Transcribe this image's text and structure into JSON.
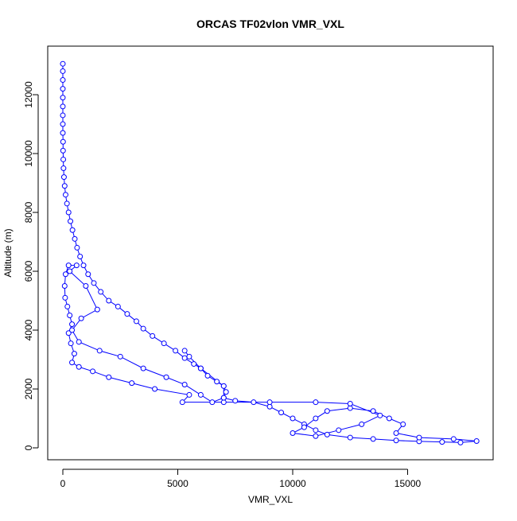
{
  "chart_data": {
    "type": "scatter",
    "title": "ORCAS TF02vlon VMR_VXL",
    "x_label": "VMR_VXL",
    "y_label": "Altitude (m)",
    "color": "#0000ff",
    "connect": true,
    "x": [
      0,
      0,
      0,
      0,
      0,
      0,
      0,
      0,
      0,
      10,
      10,
      20,
      30,
      50,
      80,
      120,
      180,
      250,
      330,
      420,
      520,
      620,
      750,
      900,
      1100,
      1350,
      1650,
      2000,
      2400,
      2800,
      3200,
      3500,
      3900,
      4400,
      4900,
      5300,
      5700,
      6000,
      6300,
      6700,
      7000,
      7100,
      7000,
      7500,
      8300,
      9000,
      9500,
      10000,
      10500,
      11000,
      11500,
      12500,
      13500,
      14500,
      15500,
      16500,
      17300,
      18000,
      17000,
      15500,
      14500,
      14800,
      14200,
      13500,
      12500,
      11500,
      11000,
      10500,
      10000,
      11000,
      12000,
      13000,
      13800,
      12500,
      11000,
      9000,
      7000,
      5200,
      5500,
      4000,
      3000,
      2000,
      1300,
      700,
      400,
      500,
      350,
      250,
      400,
      300,
      200,
      100,
      80,
      120,
      250,
      600,
      300,
      1000,
      1500,
      800,
      400,
      700,
      1600,
      2500,
      3500,
      4500,
      5300,
      6000,
      6500,
      7000,
      7000,
      6000,
      5500,
      5300
    ],
    "values": [
      13050,
      12800,
      12500,
      12200,
      11900,
      11600,
      11300,
      11000,
      10700,
      10400,
      10100,
      9800,
      9500,
      9200,
      8900,
      8600,
      8300,
      8000,
      7700,
      7400,
      7100,
      6800,
      6500,
      6200,
      5900,
      5600,
      5300,
      5000,
      4800,
      4550,
      4300,
      4050,
      3800,
      3550,
      3300,
      3050,
      2850,
      2700,
      2450,
      2250,
      2100,
      1900,
      1700,
      1600,
      1550,
      1400,
      1200,
      1000,
      800,
      600,
      450,
      350,
      300,
      250,
      220,
      200,
      180,
      230,
      300,
      350,
      500,
      800,
      1000,
      1250,
      1350,
      1250,
      1000,
      700,
      500,
      400,
      600,
      800,
      1100,
      1500,
      1550,
      1550,
      1550,
      1550,
      1800,
      2000,
      2200,
      2400,
      2600,
      2750,
      2900,
      3200,
      3550,
      3900,
      4200,
      4500,
      4800,
      5100,
      5500,
      5900,
      6200,
      6200,
      6000,
      5500,
      4700,
      4400,
      4000,
      3600,
      3300,
      3100,
      2700,
      2400,
      2150,
      1800,
      1550,
      1700,
      2100,
      2700,
      3100,
      3300
    ],
    "xlim": [
      -657,
      18720
    ],
    "ylim": [
      -405,
      13650
    ],
    "xticks": [
      0,
      5000,
      10000,
      15000
    ],
    "yticks": [
      0,
      2000,
      4000,
      6000,
      8000,
      10000,
      12000
    ]
  }
}
